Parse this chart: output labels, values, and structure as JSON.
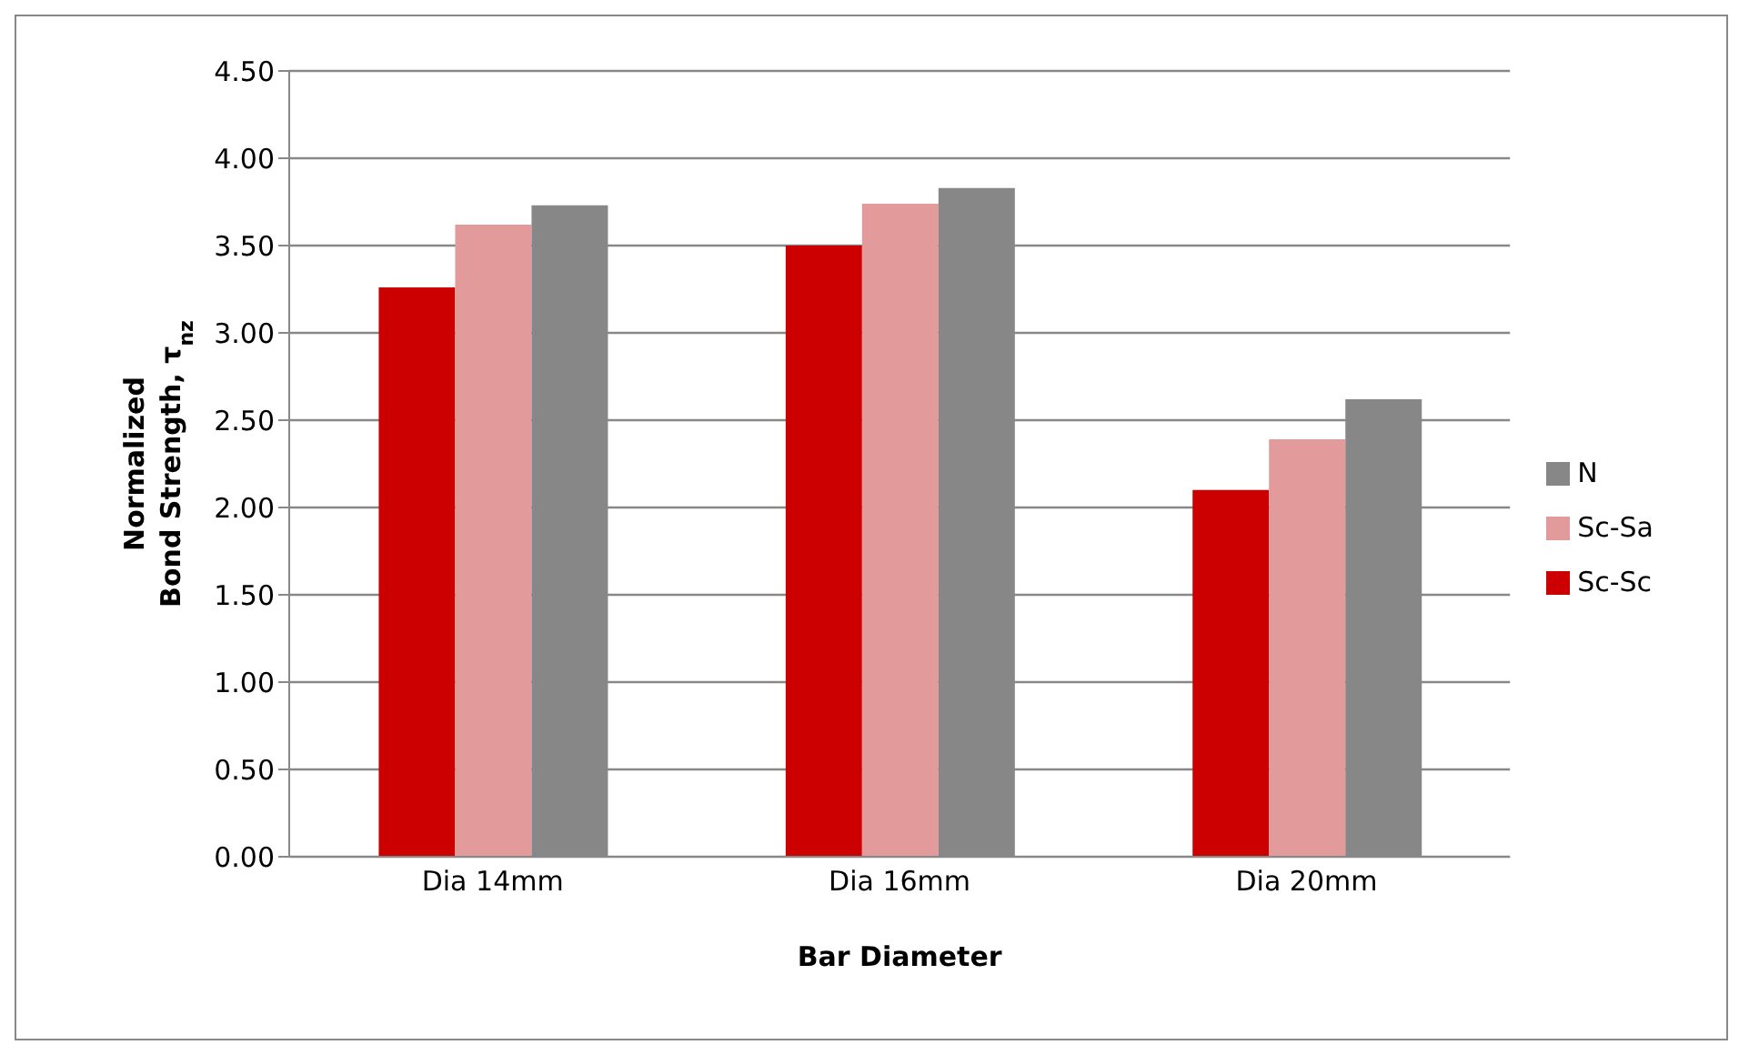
{
  "chart_data": {
    "type": "bar",
    "xlabel": "Bar Diameter",
    "ylabel": "Normalized\nBond Strength, τ$_{nz}$",
    "categories": [
      "Dia 14mm",
      "Dia 16mm",
      "Dia 20mm"
    ],
    "series": [
      {
        "name": "Sc-Sc",
        "color": "#cc0000",
        "values": [
          3.26,
          3.5,
          2.1
        ]
      },
      {
        "name": "Sc-Sa",
        "color": "#e39a9a",
        "values": [
          3.62,
          3.74,
          2.39
        ]
      },
      {
        "name": "N",
        "color": "#878787",
        "values": [
          3.73,
          3.83,
          2.62
        ]
      }
    ],
    "ylim": [
      0,
      4.5
    ],
    "yticks": [
      {
        "value": 0,
        "label": "0.00"
      },
      {
        "value": 0.5,
        "label": "0.50"
      },
      {
        "value": 1,
        "label": "1.00"
      },
      {
        "value": 1.5,
        "label": "1.50"
      },
      {
        "value": 2,
        "label": "2.00"
      },
      {
        "value": 2.5,
        "label": "2.50"
      },
      {
        "value": 3,
        "label": "3.00"
      },
      {
        "value": 3.5,
        "label": "3.50"
      },
      {
        "value": 4,
        "label": "4.00"
      },
      {
        "value": 4.5,
        "label": "4.50"
      }
    ],
    "grid": "y",
    "legend": "right"
  }
}
